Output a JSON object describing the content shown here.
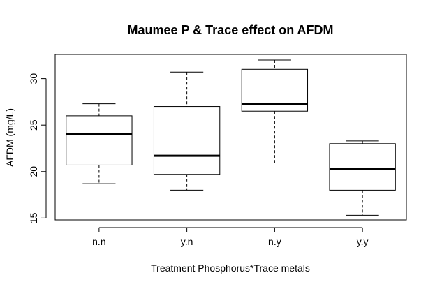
{
  "chart_data": {
    "type": "box",
    "title": "Maumee P & Trace effect on AFDM",
    "xlabel": "Treatment Phosphorus*Trace metals",
    "ylabel": "AFDM (mg/L)",
    "ylim": [
      14.8,
      32.6
    ],
    "yticks": [
      15,
      20,
      25,
      30
    ],
    "grid": false,
    "categories": [
      "n.n",
      "y.n",
      "n.y",
      "y.y"
    ],
    "boxes": [
      {
        "category": "n.n",
        "whisker_low": 18.7,
        "q1": 20.7,
        "median": 24.0,
        "q3": 26.0,
        "whisker_high": 27.3
      },
      {
        "category": "y.n",
        "whisker_low": 18.0,
        "q1": 19.7,
        "median": 21.7,
        "q3": 27.0,
        "whisker_high": 30.7
      },
      {
        "category": "n.y",
        "whisker_low": 20.7,
        "q1": 26.5,
        "median": 27.3,
        "q3": 31.0,
        "whisker_high": 32.0
      },
      {
        "category": "y.y",
        "whisker_low": 15.3,
        "q1": 18.0,
        "median": 20.3,
        "q3": 23.0,
        "whisker_high": 23.3
      }
    ]
  }
}
